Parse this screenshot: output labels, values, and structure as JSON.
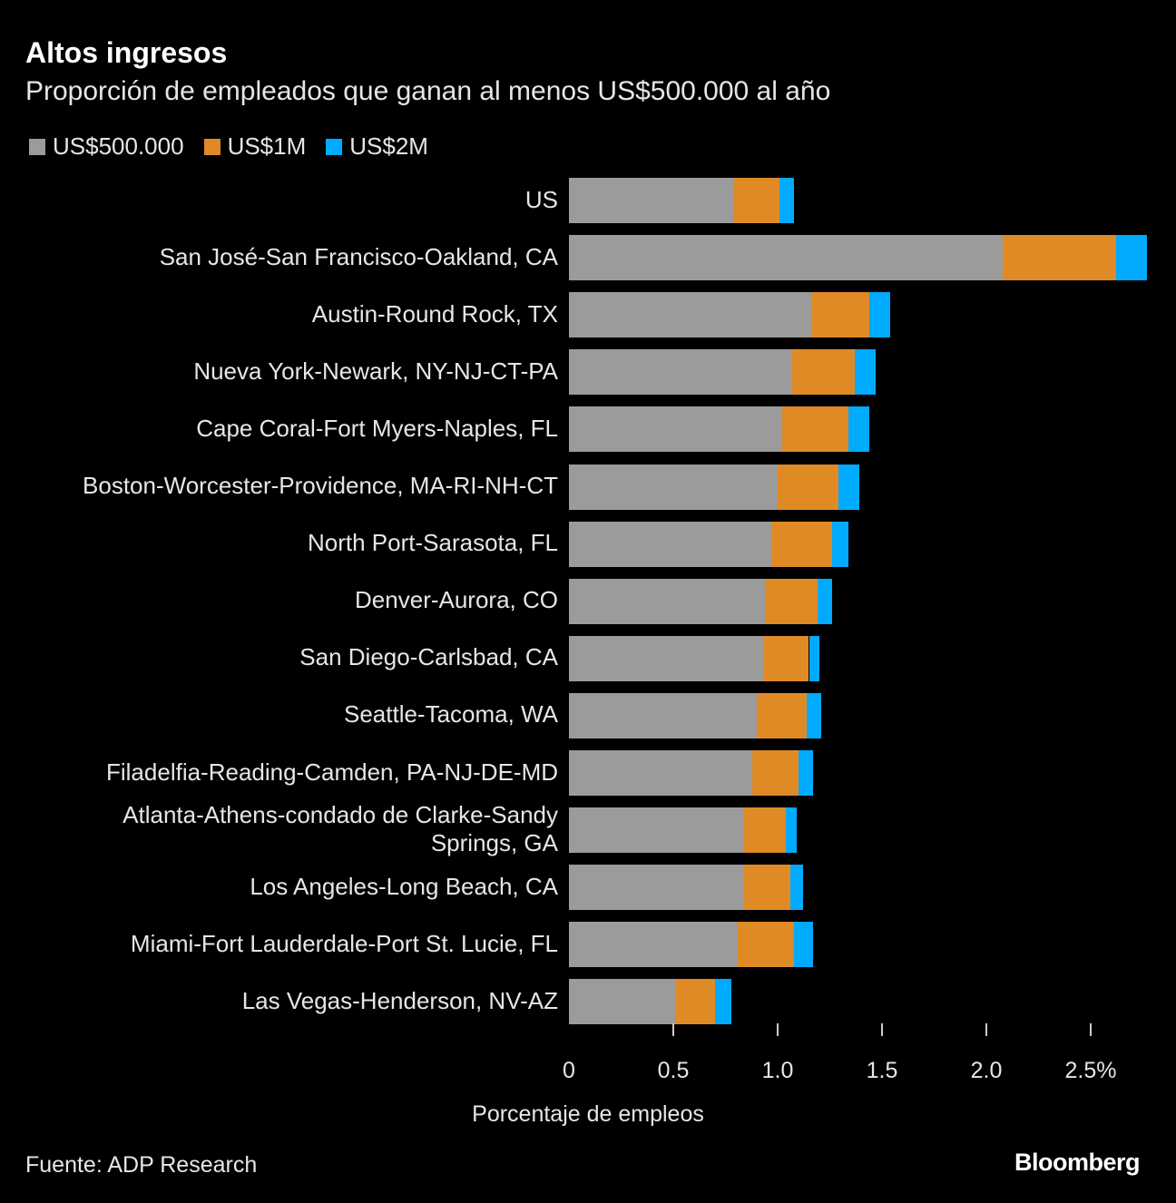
{
  "chart_data": {
    "type": "bar",
    "orientation": "horizontal",
    "stacked": true,
    "title": "Altos ingresos",
    "subtitle": "Proporción de empleados que ganan al menos US$500.000 al año",
    "xlabel": "Porcentaje de empleos",
    "ylabel": "",
    "xlim": [
      0,
      2.8
    ],
    "xticks": [
      0,
      0.5,
      1.0,
      1.5,
      2.0,
      2.5
    ],
    "xtick_labels": [
      "0",
      "0.5",
      "1.0",
      "1.5",
      "2.0",
      "2.5%"
    ],
    "grid": false,
    "legend": "top-left",
    "categories": [
      "US",
      "San José-San Francisco-Oakland, CA",
      "Austin-Round Rock, TX",
      "Nueva York-Newark, NY-NJ-CT-PA",
      "Cape Coral-Fort Myers-Naples, FL",
      "Boston-Worcester-Providence, MA-RI-NH-CT",
      "North Port-Sarasota, FL",
      "Denver-Aurora, CO",
      "San Diego-Carlsbad, CA",
      "Seattle-Tacoma, WA",
      "Filadelfia-Reading-Camden, PA-NJ-DE-MD",
      "Atlanta-Athens-condado de Clarke-Sandy\nSprings, GA",
      "Los Angeles-Long Beach, CA",
      "Miami-Fort Lauderdale-Port St. Lucie, FL",
      "Las Vegas-Henderson, NV-AZ"
    ],
    "series": [
      {
        "name": "US$500.000",
        "color": "#9b9b9b",
        "values": [
          0.79,
          2.08,
          1.16,
          1.07,
          1.02,
          1.0,
          0.97,
          0.94,
          0.93,
          0.9,
          0.88,
          0.84,
          0.84,
          0.81,
          0.51
        ]
      },
      {
        "name": "US$1M",
        "color": "#e08a26",
        "values": [
          0.22,
          0.54,
          0.28,
          0.3,
          0.32,
          0.29,
          0.29,
          0.25,
          0.22,
          0.24,
          0.22,
          0.2,
          0.22,
          0.27,
          0.19
        ]
      },
      {
        "name": "US$2M",
        "color": "#00aaff",
        "values": [
          0.07,
          0.15,
          0.1,
          0.1,
          0.1,
          0.1,
          0.08,
          0.07,
          0.05,
          0.07,
          0.07,
          0.05,
          0.06,
          0.09,
          0.08
        ]
      }
    ]
  },
  "source": "Fuente: ADP Research",
  "brand": "Bloomberg"
}
